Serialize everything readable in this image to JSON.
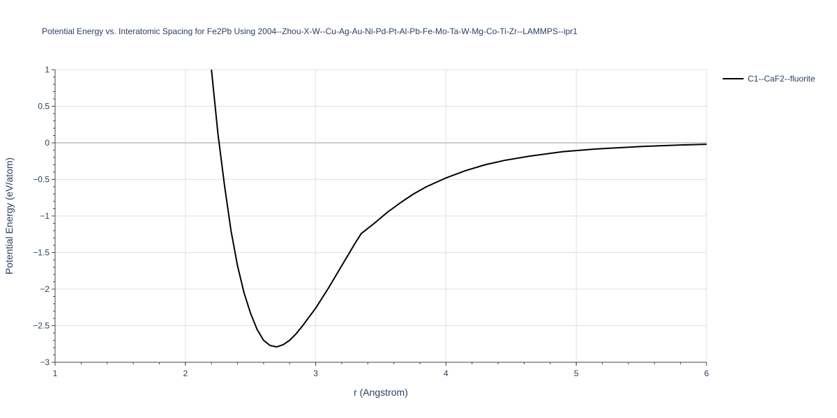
{
  "chart_data": {
    "type": "line",
    "title": "Potential Energy vs. Interatomic Spacing for Fe2Pb Using 2004--Zhou-X-W--Cu-Ag-Au-Ni-Pd-Pt-Al-Pb-Fe-Mo-Ta-W-Mg-Co-Ti-Zr--LAMMPS--ipr1",
    "xlabel": "r (Angstrom)",
    "ylabel": "Potential Energy (eV/atom)",
    "xlim": [
      1,
      6
    ],
    "ylim": [
      -3,
      1
    ],
    "x_ticks": [
      "1",
      "2",
      "3",
      "4",
      "5",
      "6"
    ],
    "y_ticks": [
      "1",
      "0.5",
      "0",
      "−0.5",
      "−1",
      "−1.5",
      "−2",
      "−2.5",
      "−3"
    ],
    "grid": true,
    "legend_position": "top-right",
    "line_color": "#000000",
    "series": [
      {
        "name": "C1--CaF2--fluorite",
        "x": [
          2.2,
          2.25,
          2.3,
          2.35,
          2.4,
          2.45,
          2.5,
          2.55,
          2.6,
          2.65,
          2.7,
          2.75,
          2.8,
          2.85,
          2.9,
          3.0,
          3.1,
          3.2,
          3.3,
          3.35,
          3.45,
          3.55,
          3.65,
          3.75,
          3.85,
          4.0,
          4.15,
          4.3,
          4.45,
          4.65,
          4.9,
          5.15,
          5.5,
          5.8,
          6.0
        ],
        "y": [
          1.0,
          0.12,
          -0.58,
          -1.2,
          -1.68,
          -2.05,
          -2.33,
          -2.55,
          -2.7,
          -2.77,
          -2.79,
          -2.76,
          -2.7,
          -2.61,
          -2.5,
          -2.26,
          -1.98,
          -1.68,
          -1.38,
          -1.24,
          -1.1,
          -0.95,
          -0.82,
          -0.7,
          -0.6,
          -0.48,
          -0.38,
          -0.3,
          -0.24,
          -0.18,
          -0.12,
          -0.085,
          -0.05,
          -0.03,
          -0.02
        ]
      }
    ]
  }
}
